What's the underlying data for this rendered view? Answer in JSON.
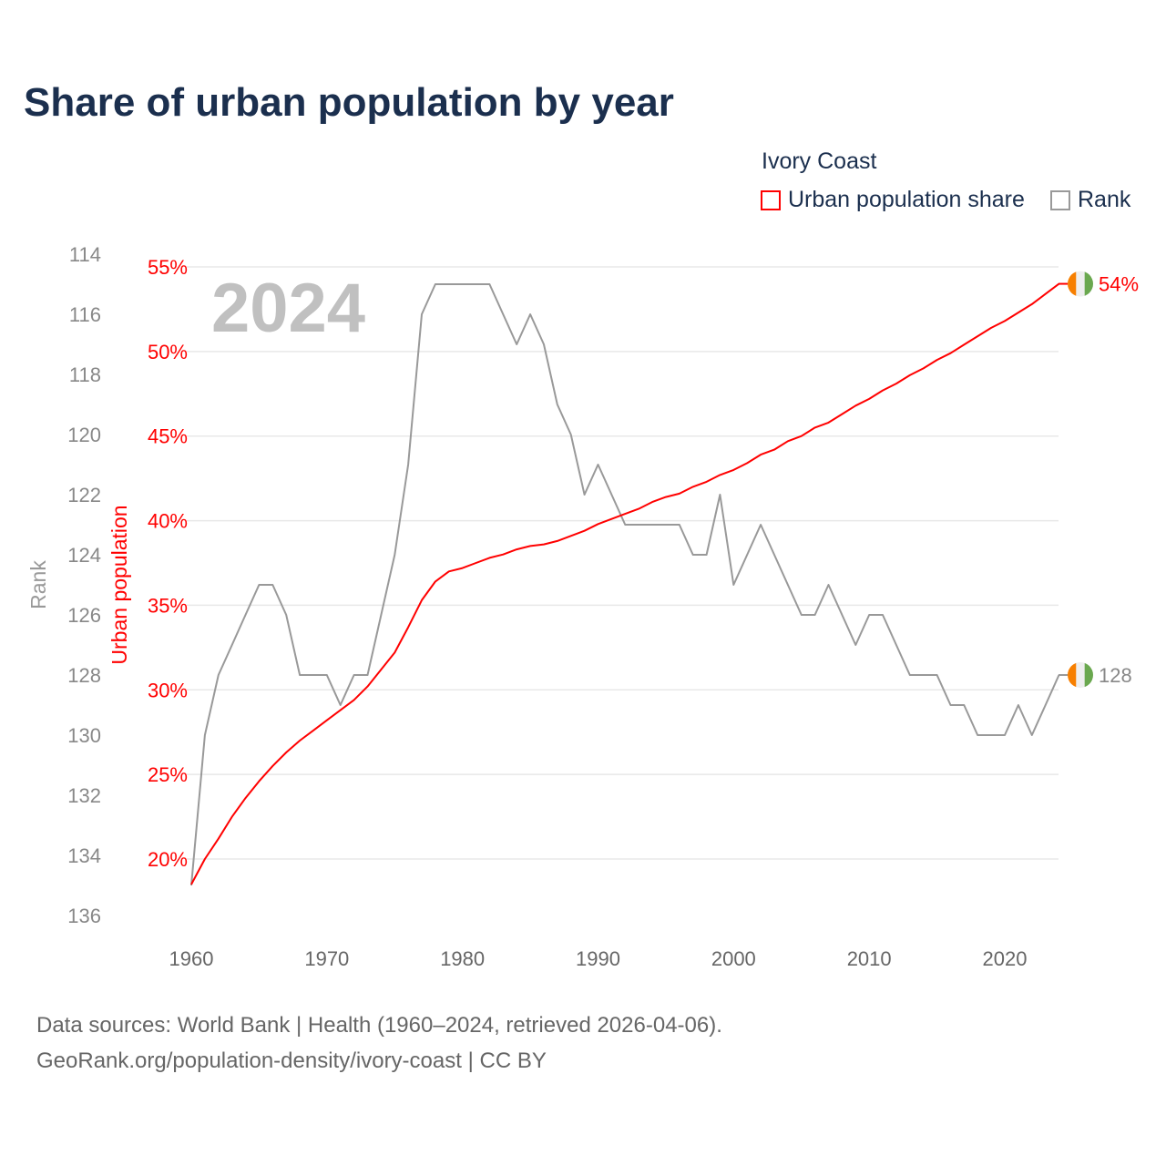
{
  "title": "Share of urban population by year",
  "legend": {
    "title": "Ivory Coast",
    "items": [
      {
        "label": "Urban population share",
        "color": "#ff0000"
      },
      {
        "label": "Rank",
        "color": "#999999"
      }
    ]
  },
  "year_watermark": "2024",
  "end_labels": {
    "share": "54%",
    "rank": "128"
  },
  "flag_colors": [
    "#f77f00",
    "#eeeeee",
    "#6aa84f"
  ],
  "footer": {
    "line1": "Data sources: World Bank | Health (1960–2024, retrieved 2026-04-06).",
    "line2": "GeoRank.org/population-density/ivory-coast | CC BY"
  },
  "chart_data": {
    "type": "line",
    "title": "Share of urban population by year",
    "xlabel": "",
    "ylabel_left": "Rank",
    "ylabel_right": "Urban population",
    "x": [
      1960,
      1961,
      1962,
      1963,
      1964,
      1965,
      1966,
      1967,
      1968,
      1969,
      1970,
      1971,
      1972,
      1973,
      1974,
      1975,
      1976,
      1977,
      1978,
      1979,
      1980,
      1981,
      1982,
      1983,
      1984,
      1985,
      1986,
      1987,
      1988,
      1989,
      1990,
      1991,
      1992,
      1993,
      1994,
      1995,
      1996,
      1997,
      1998,
      1999,
      2000,
      2001,
      2002,
      2003,
      2004,
      2005,
      2006,
      2007,
      2008,
      2009,
      2010,
      2011,
      2012,
      2013,
      2014,
      2015,
      2016,
      2017,
      2018,
      2019,
      2020,
      2021,
      2022,
      2023,
      2024
    ],
    "xlim": [
      1960,
      2024
    ],
    "x_ticks": [
      "1960",
      "1970",
      "1980",
      "1990",
      "2000",
      "2010",
      "2020"
    ],
    "rank_axis": {
      "range": [
        114,
        136
      ],
      "reversed": true,
      "ticks": [
        "114",
        "116",
        "118",
        "120",
        "122",
        "124",
        "126",
        "128",
        "130",
        "132",
        "134",
        "136"
      ]
    },
    "share_axis": {
      "range": [
        20,
        55
      ],
      "ticks": [
        "20%",
        "25%",
        "30%",
        "35%",
        "40%",
        "45%",
        "50%",
        "55%"
      ]
    },
    "series": [
      {
        "name": "Urban population share",
        "axis": "share",
        "color": "#ff0000",
        "values": [
          18.5,
          20.0,
          21.2,
          22.5,
          23.6,
          24.6,
          25.5,
          26.3,
          27.0,
          27.6,
          28.2,
          28.8,
          29.4,
          30.2,
          31.2,
          32.2,
          33.7,
          35.3,
          36.4,
          37.0,
          37.2,
          37.5,
          37.8,
          38.0,
          38.3,
          38.5,
          38.6,
          38.8,
          39.1,
          39.4,
          39.8,
          40.1,
          40.4,
          40.7,
          41.1,
          41.4,
          41.6,
          42.0,
          42.3,
          42.7,
          43.0,
          43.4,
          43.9,
          44.2,
          44.7,
          45.0,
          45.5,
          45.8,
          46.3,
          46.8,
          47.2,
          47.7,
          48.1,
          48.6,
          49.0,
          49.5,
          49.9,
          50.4,
          50.9,
          51.4,
          51.8,
          52.3,
          52.8,
          53.4,
          54.0
        ]
      },
      {
        "name": "Rank",
        "axis": "rank",
        "color": "#999999",
        "values": [
          135,
          130,
          128,
          127,
          126,
          125,
          125,
          126,
          128,
          128,
          128,
          129,
          128,
          128,
          126,
          124,
          121,
          116,
          115,
          115,
          115,
          115,
          115,
          116,
          117,
          116,
          117,
          119,
          120,
          122,
          121,
          122,
          123,
          123,
          123,
          123,
          123,
          124,
          124,
          122,
          125,
          124,
          123,
          124,
          125,
          126,
          126,
          125,
          126,
          127,
          126,
          126,
          127,
          128,
          128,
          128,
          129,
          129,
          130,
          130,
          130,
          129,
          130,
          129,
          128
        ]
      }
    ],
    "grid": true,
    "legend_position": "top-right"
  }
}
